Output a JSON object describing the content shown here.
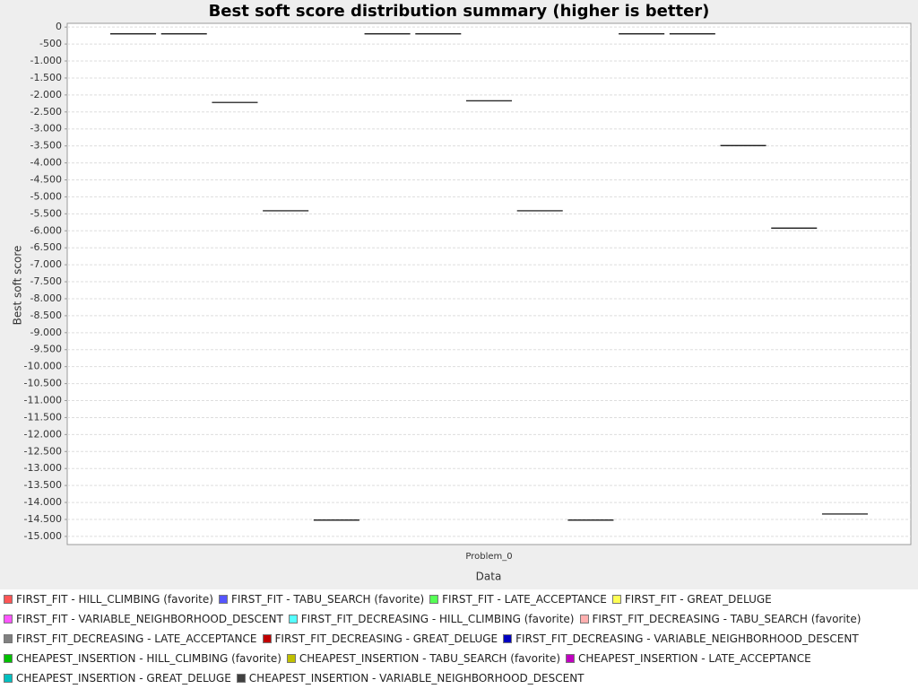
{
  "chart_data": {
    "type": "box",
    "title": "Best soft score distribution summary (higher is better)",
    "y_label": "Best soft score",
    "x_label": "Data",
    "categories": [
      "Problem_0"
    ],
    "ylim": [
      -15240,
      110
    ],
    "yticks": [
      0,
      -500,
      {
        "value": -1000,
        "label": "-1.000"
      },
      {
        "value": -1500,
        "label": "-1.500"
      },
      {
        "value": -2000,
        "label": "-2.000"
      },
      {
        "value": -2500,
        "label": "-2.500"
      },
      {
        "value": -3000,
        "label": "-3.000"
      },
      {
        "value": -3500,
        "label": "-3.500"
      },
      {
        "value": -4000,
        "label": "-4.000"
      },
      {
        "value": -4500,
        "label": "-4.500"
      },
      {
        "value": -5000,
        "label": "-5.000"
      },
      {
        "value": -5500,
        "label": "-5.500"
      },
      {
        "value": -6000,
        "label": "-6.000"
      },
      {
        "value": -6500,
        "label": "-6.500"
      },
      {
        "value": -7000,
        "label": "-7.000"
      },
      {
        "value": -7500,
        "label": "-7.500"
      },
      {
        "value": -8000,
        "label": "-8.000"
      },
      {
        "value": -8500,
        "label": "-8.500"
      },
      {
        "value": -9000,
        "label": "-9.000"
      },
      {
        "value": -9500,
        "label": "-9.500"
      },
      {
        "value": -10000,
        "label": "-10.000"
      },
      {
        "value": -10500,
        "label": "-10.500"
      },
      {
        "value": -11000,
        "label": "-11.000"
      },
      {
        "value": -11500,
        "label": "-11.500"
      },
      {
        "value": -12000,
        "label": "-12.000"
      },
      {
        "value": -12500,
        "label": "-12.500"
      },
      {
        "value": -13000,
        "label": "-13.000"
      },
      {
        "value": -13500,
        "label": "-13.500"
      },
      {
        "value": -14000,
        "label": "-14.000"
      },
      {
        "value": -14500,
        "label": "-14.500"
      },
      {
        "value": -15000,
        "label": "-15.000"
      }
    ],
    "grid": true,
    "series": [
      {
        "name": "FIRST_FIT - HILL_CLIMBING (favorite)",
        "color": "#ff5555",
        "values": [
          -200
        ]
      },
      {
        "name": "FIRST_FIT - TABU_SEARCH (favorite)",
        "color": "#5555ff",
        "values": [
          -200
        ]
      },
      {
        "name": "FIRST_FIT - LATE_ACCEPTANCE",
        "color": "#55ff55",
        "values": [
          -2220
        ]
      },
      {
        "name": "FIRST_FIT - GREAT_DELUGE",
        "color": "#ffff55",
        "values": [
          -5410
        ]
      },
      {
        "name": "FIRST_FIT - VARIABLE_NEIGHBORHOOD_DESCENT",
        "color": "#ff55ff",
        "values": [
          -14520
        ]
      },
      {
        "name": "FIRST_FIT_DECREASING - HILL_CLIMBING (favorite)",
        "color": "#55ffff",
        "values": [
          -200
        ]
      },
      {
        "name": "FIRST_FIT_DECREASING - TABU_SEARCH (favorite)",
        "color": "#ffafaf",
        "values": [
          -200
        ]
      },
      {
        "name": "FIRST_FIT_DECREASING - LATE_ACCEPTANCE",
        "color": "#808080",
        "values": [
          -2170
        ]
      },
      {
        "name": "FIRST_FIT_DECREASING - GREAT_DELUGE",
        "color": "#c00000",
        "values": [
          -5410
        ]
      },
      {
        "name": "FIRST_FIT_DECREASING - VARIABLE_NEIGHBORHOOD_DESCENT",
        "color": "#0000c0",
        "values": [
          -14520
        ]
      },
      {
        "name": "CHEAPEST_INSERTION - HILL_CLIMBING (favorite)",
        "color": "#00c000",
        "values": [
          -200
        ]
      },
      {
        "name": "CHEAPEST_INSERTION - TABU_SEARCH (favorite)",
        "color": "#c0c000",
        "values": [
          -200
        ]
      },
      {
        "name": "CHEAPEST_INSERTION - LATE_ACCEPTANCE",
        "color": "#c000c0",
        "values": [
          -3490
        ]
      },
      {
        "name": "CHEAPEST_INSERTION - GREAT_DELUGE",
        "color": "#00c0c0",
        "values": [
          -5920
        ]
      },
      {
        "name": "CHEAPEST_INSERTION - VARIABLE_NEIGHBORHOOD_DESCENT",
        "color": "#404040",
        "values": [
          -14340
        ]
      }
    ]
  }
}
